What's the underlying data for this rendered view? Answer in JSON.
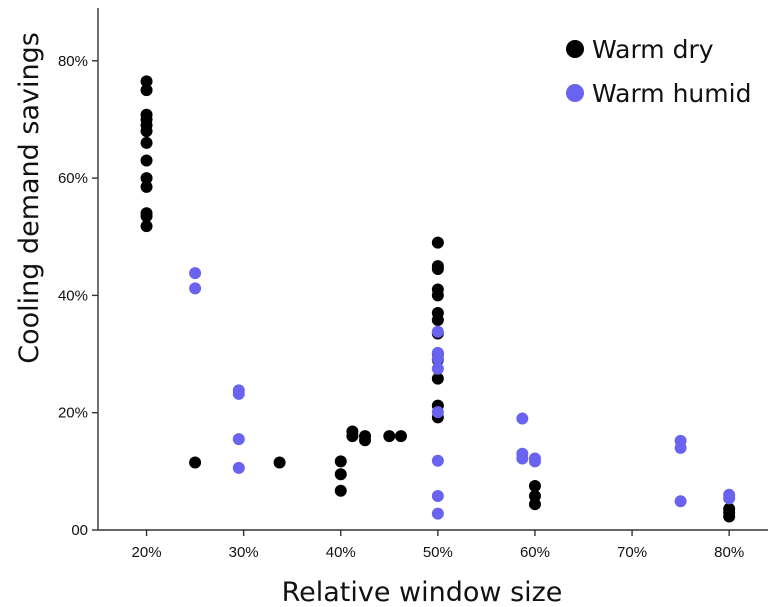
{
  "chart_data": {
    "type": "scatter",
    "title": "",
    "xlabel": "Relative window size",
    "ylabel": "Cooling demand savings",
    "xlim": [
      15,
      84
    ],
    "ylim": [
      0,
      89
    ],
    "x_ticks": [
      {
        "value": 20,
        "label": "20%"
      },
      {
        "value": 30,
        "label": "30%"
      },
      {
        "value": 40,
        "label": "40%"
      },
      {
        "value": 50,
        "label": "50%"
      },
      {
        "value": 60,
        "label": "60%"
      },
      {
        "value": 70,
        "label": "70%"
      },
      {
        "value": 80,
        "label": "80%"
      }
    ],
    "y_ticks": [
      {
        "value": 0,
        "label": "00"
      },
      {
        "value": 20,
        "label": "20%"
      },
      {
        "value": 40,
        "label": "40%"
      },
      {
        "value": 60,
        "label": "60%"
      },
      {
        "value": 80,
        "label": "80%"
      }
    ],
    "grid": false,
    "legend_position": "top-right",
    "series": [
      {
        "name": "Warm dry",
        "color": "#000000",
        "points": [
          [
            20,
            76.5
          ],
          [
            20,
            75
          ],
          [
            20,
            70.8
          ],
          [
            20,
            70
          ],
          [
            20,
            69
          ],
          [
            20,
            68
          ],
          [
            20,
            66
          ],
          [
            20,
            63
          ],
          [
            20,
            60
          ],
          [
            20,
            58.5
          ],
          [
            20,
            54
          ],
          [
            20,
            53.5
          ],
          [
            20,
            51.8
          ],
          [
            25,
            11.5
          ],
          [
            33.7,
            11.5
          ],
          [
            40,
            11.7
          ],
          [
            40,
            9.5
          ],
          [
            40,
            6.7
          ],
          [
            41.2,
            16.8
          ],
          [
            41.2,
            16
          ],
          [
            42.5,
            16
          ],
          [
            42.5,
            15.3
          ],
          [
            45,
            16
          ],
          [
            46.2,
            16
          ],
          [
            50,
            49
          ],
          [
            50,
            45
          ],
          [
            50,
            44.5
          ],
          [
            50,
            41
          ],
          [
            50,
            40
          ],
          [
            50,
            37
          ],
          [
            50,
            35.8
          ],
          [
            50,
            33.5
          ],
          [
            50,
            30
          ],
          [
            50,
            29
          ],
          [
            50,
            25.8
          ],
          [
            50,
            21.2
          ],
          [
            50,
            19.2
          ],
          [
            60,
            7.5
          ],
          [
            60,
            5.8
          ],
          [
            60,
            4.4
          ],
          [
            80,
            3.6
          ],
          [
            80,
            3.0
          ],
          [
            80,
            2.3
          ]
        ]
      },
      {
        "name": "Warm humid",
        "color": "#6a63ef",
        "points": [
          [
            25,
            43.8
          ],
          [
            25,
            41.2
          ],
          [
            29.5,
            23.8
          ],
          [
            29.5,
            23.2
          ],
          [
            29.5,
            15.5
          ],
          [
            29.5,
            10.6
          ],
          [
            50,
            33.8
          ],
          [
            50,
            30.2
          ],
          [
            50,
            29.2
          ],
          [
            50,
            27.5
          ],
          [
            50,
            20.1
          ],
          [
            50,
            11.8
          ],
          [
            50,
            5.8
          ],
          [
            50,
            2.8
          ],
          [
            58.7,
            19
          ],
          [
            58.7,
            13
          ],
          [
            58.7,
            12.2
          ],
          [
            60,
            12.2
          ],
          [
            60,
            11.7
          ],
          [
            75,
            15.2
          ],
          [
            75,
            14
          ],
          [
            75,
            4.9
          ],
          [
            80,
            6.0
          ],
          [
            80,
            5.4
          ]
        ]
      }
    ]
  }
}
